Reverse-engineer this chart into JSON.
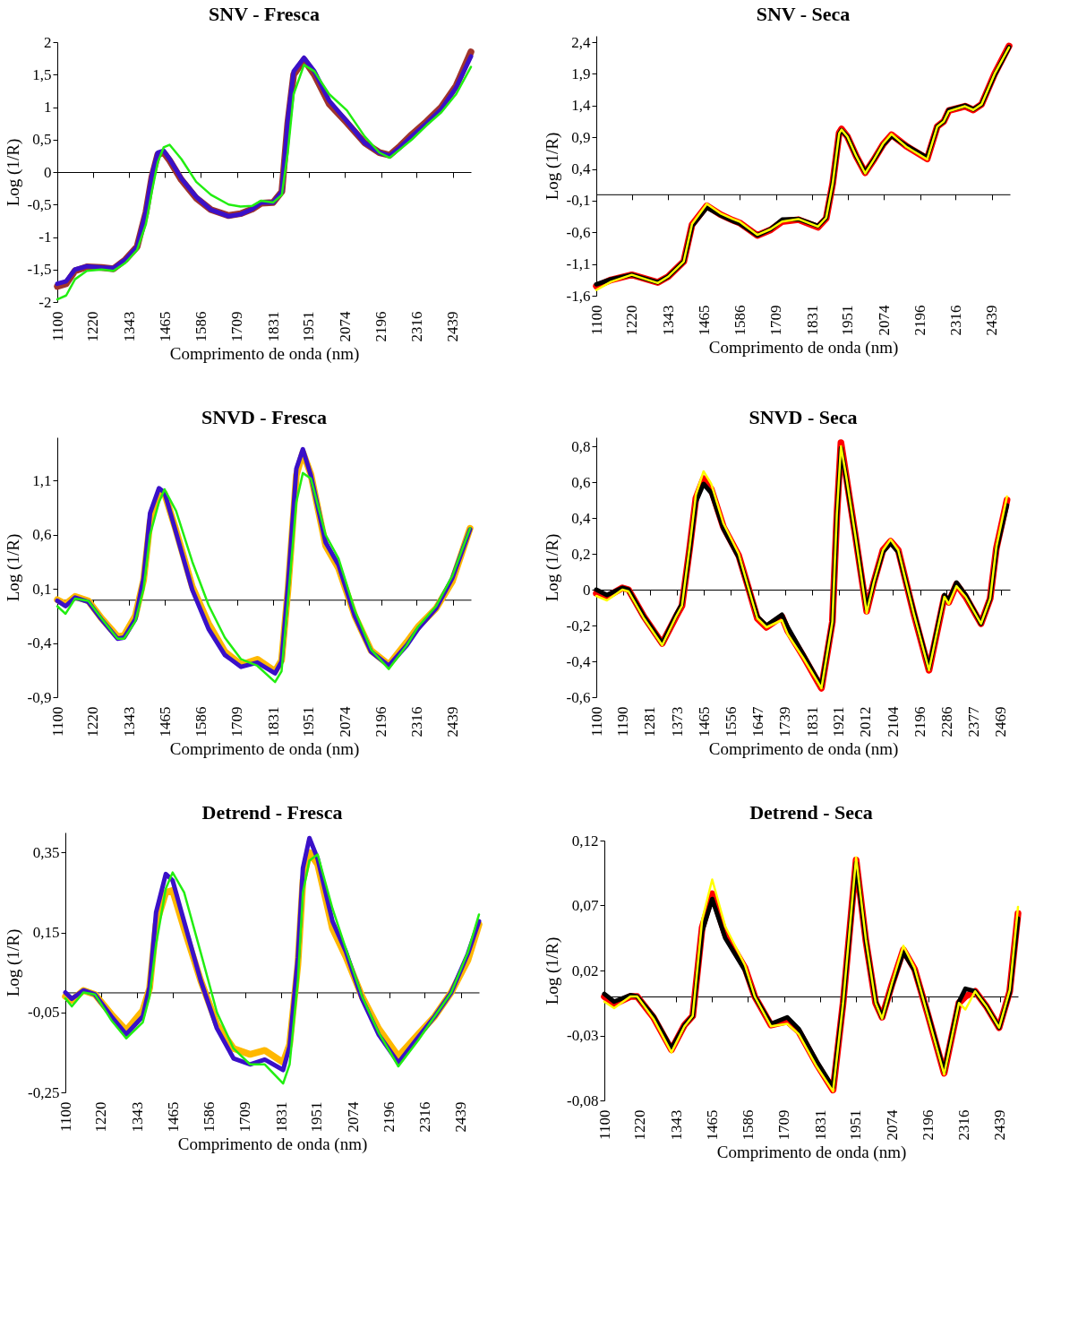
{
  "chart_data": [
    {
      "type": "line",
      "title": "SNV - Fresca",
      "xlabel": "Comprimento de onda (nm)",
      "ylabel": "Log (1/R)",
      "xlim": [
        1100,
        2500
      ],
      "xticks": [
        1100,
        1220,
        1343,
        1465,
        1586,
        1709,
        1831,
        1951,
        2074,
        2196,
        2316,
        2439
      ],
      "ylim": [
        -2,
        2
      ],
      "yticks": [
        -2,
        {
          "value": -1.5,
          "label": "-1,5"
        },
        -1,
        {
          "value": -0.5,
          "label": "-0,5"
        },
        0,
        {
          "value": 0.5,
          "label": "0,5"
        },
        1,
        {
          "value": 1.5,
          "label": "1,5"
        },
        2
      ],
      "x": [
        1100,
        1130,
        1160,
        1200,
        1250,
        1290,
        1330,
        1370,
        1400,
        1420,
        1440,
        1460,
        1480,
        1520,
        1570,
        1620,
        1680,
        1720,
        1760,
        1790,
        1830,
        1860,
        1880,
        1900,
        1935,
        1970,
        2020,
        2080,
        2140,
        2190,
        2225,
        2260,
        2300,
        2350,
        2400,
        2450,
        2500
      ],
      "series": [
        {
          "color": "#a0342c",
          "values": [
            -1.76,
            -1.72,
            -1.52,
            -1.46,
            -1.47,
            -1.49,
            -1.35,
            -1.15,
            -0.62,
            -0.08,
            0.27,
            0.3,
            0.18,
            -0.12,
            -0.4,
            -0.58,
            -0.67,
            -0.64,
            -0.57,
            -0.48,
            -0.47,
            -0.3,
            0.75,
            1.5,
            1.73,
            1.5,
            1.05,
            0.76,
            0.45,
            0.3,
            0.26,
            0.4,
            0.58,
            0.78,
            1.0,
            1.33,
            1.85
          ]
        },
        {
          "color": "#3a10c8",
          "values": [
            -1.72,
            -1.68,
            -1.5,
            -1.45,
            -1.47,
            -1.48,
            -1.35,
            -1.15,
            -0.6,
            -0.05,
            0.3,
            0.33,
            0.2,
            -0.1,
            -0.38,
            -0.58,
            -0.68,
            -0.65,
            -0.57,
            -0.47,
            -0.47,
            -0.3,
            0.8,
            1.55,
            1.76,
            1.55,
            1.1,
            0.78,
            0.45,
            0.3,
            0.25,
            0.38,
            0.55,
            0.75,
            0.97,
            1.3,
            1.78
          ]
        },
        {
          "color": "#22ee11",
          "values": [
            -1.96,
            -1.9,
            -1.65,
            -1.52,
            -1.5,
            -1.52,
            -1.4,
            -1.2,
            -0.8,
            -0.3,
            0.15,
            0.38,
            0.42,
            0.2,
            -0.15,
            -0.35,
            -0.5,
            -0.53,
            -0.52,
            -0.44,
            -0.47,
            -0.35,
            0.3,
            1.2,
            1.65,
            1.55,
            1.2,
            0.95,
            0.55,
            0.3,
            0.22,
            0.35,
            0.5,
            0.72,
            0.92,
            1.2,
            1.62
          ]
        }
      ]
    },
    {
      "type": "line",
      "title": "SNV - Seca",
      "xlabel": "Comprimento de onda (nm)",
      "ylabel": "Log (1/R)",
      "xlim": [
        1100,
        2500
      ],
      "xticks": [
        1100,
        1220,
        1343,
        1465,
        1586,
        1709,
        1831,
        1951,
        2074,
        2196,
        2316,
        2439
      ],
      "ylim": [
        -1.6,
        2.5
      ],
      "yticks": [
        {
          "value": -1.6,
          "label": "-1,6"
        },
        {
          "value": -1.1,
          "label": "-1,1"
        },
        {
          "value": -0.6,
          "label": "-0,6"
        },
        {
          "value": -0.1,
          "label": "-0,1"
        },
        {
          "value": 0.4,
          "label": "0,4"
        },
        {
          "value": 0.9,
          "label": "0,9"
        },
        {
          "value": 1.4,
          "label": "1,4"
        },
        {
          "value": 1.9,
          "label": "1,9"
        },
        {
          "value": 2.4,
          "label": "2,4"
        }
      ],
      "x": [
        1100,
        1150,
        1220,
        1308,
        1343,
        1396,
        1424,
        1474,
        1520,
        1562,
        1585,
        1645,
        1690,
        1729,
        1784,
        1850,
        1878,
        1900,
        1922,
        1930,
        1950,
        1980,
        2010,
        2040,
        2071,
        2099,
        2149,
        2220,
        2254,
        2276,
        2293,
        2348,
        2376,
        2404,
        2448,
        2497
      ],
      "series": [
        {
          "color": "#ff0000",
          "values": [
            -1.45,
            -1.35,
            -1.27,
            -1.39,
            -1.3,
            -1.06,
            -0.48,
            -0.18,
            -0.32,
            -0.41,
            -0.45,
            -0.65,
            -0.56,
            -0.43,
            -0.4,
            -0.52,
            -0.38,
            0.17,
            0.97,
            1.03,
            0.91,
            0.6,
            0.34,
            0.55,
            0.79,
            0.94,
            0.76,
            0.56,
            1.07,
            1.15,
            1.32,
            1.39,
            1.33,
            1.42,
            1.9,
            2.34
          ]
        },
        {
          "color": "#000000",
          "values": [
            -1.42,
            -1.34,
            -1.27,
            -1.39,
            -1.3,
            -1.06,
            -0.5,
            -0.21,
            -0.33,
            -0.42,
            -0.46,
            -0.65,
            -0.55,
            -0.4,
            -0.39,
            -0.5,
            -0.37,
            0.17,
            0.95,
            1.01,
            0.91,
            0.6,
            0.35,
            0.55,
            0.78,
            0.92,
            0.77,
            0.58,
            1.07,
            1.15,
            1.33,
            1.4,
            1.34,
            1.42,
            1.88,
            2.32
          ]
        },
        {
          "color": "#ffff00",
          "values": [
            -1.51,
            -1.38,
            -1.27,
            -1.4,
            -1.3,
            -1.06,
            -0.47,
            -0.15,
            -0.3,
            -0.39,
            -0.43,
            -0.64,
            -0.55,
            -0.43,
            -0.39,
            -0.51,
            -0.37,
            0.17,
            0.96,
            1.02,
            0.91,
            0.6,
            0.33,
            0.55,
            0.8,
            0.95,
            0.75,
            0.55,
            1.07,
            1.15,
            1.31,
            1.39,
            1.33,
            1.42,
            1.9,
            2.32
          ]
        }
      ]
    },
    {
      "type": "line",
      "title": "SNVD - Fresca",
      "xlabel": "Comprimento de onda (nm)",
      "ylabel": "Log (1/R)",
      "xlim": [
        1100,
        2500
      ],
      "xticks": [
        1100,
        1220,
        1343,
        1465,
        1586,
        1709,
        1831,
        1951,
        2074,
        2196,
        2316,
        2439
      ],
      "ylim": [
        -0.9,
        1.5
      ],
      "yticks": [
        {
          "value": -0.9,
          "label": "-0,9"
        },
        {
          "value": -0.4,
          "label": "-0,4"
        },
        {
          "value": 0.1,
          "label": "0,1"
        },
        {
          "value": 0.6,
          "label": "0,6"
        },
        {
          "value": 1.1,
          "label": "1,1"
        }
      ],
      "x": [
        1100,
        1128,
        1160,
        1205,
        1249,
        1304,
        1326,
        1364,
        1392,
        1414,
        1444,
        1463,
        1502,
        1557,
        1612,
        1667,
        1722,
        1777,
        1837,
        1859,
        1881,
        1909,
        1931,
        1958,
        2008,
        2052,
        2107,
        2162,
        2222,
        2283,
        2321,
        2382,
        2437,
        2497
      ],
      "series": [
        {
          "color": "#ffb800",
          "values": [
            0,
            -0.04,
            0.03,
            -0.01,
            -0.17,
            -0.34,
            -0.33,
            -0.15,
            0.18,
            0.72,
            0.97,
            0.98,
            0.64,
            0.12,
            -0.22,
            -0.48,
            -0.6,
            -0.55,
            -0.66,
            -0.56,
            0.1,
            1.15,
            1.36,
            1.16,
            0.5,
            0.29,
            -0.15,
            -0.47,
            -0.6,
            -0.39,
            -0.25,
            -0.08,
            0.17,
            0.66
          ]
        },
        {
          "color": "#3a10c8",
          "values": [
            -0.01,
            -0.06,
            0.02,
            -0.02,
            -0.18,
            -0.36,
            -0.35,
            -0.18,
            0.2,
            0.8,
            1.03,
            0.99,
            0.62,
            0.09,
            -0.27,
            -0.51,
            -0.62,
            -0.58,
            -0.68,
            -0.57,
            0.14,
            1.21,
            1.39,
            1.15,
            0.53,
            0.32,
            -0.15,
            -0.48,
            -0.61,
            -0.42,
            -0.27,
            -0.08,
            0.2,
            0.65
          ]
        },
        {
          "color": "#22ee11",
          "values": [
            -0.06,
            -0.13,
            0.01,
            -0.01,
            -0.17,
            -0.36,
            -0.36,
            -0.2,
            0.1,
            0.6,
            0.9,
            1.02,
            0.82,
            0.35,
            -0.05,
            -0.35,
            -0.55,
            -0.61,
            -0.76,
            -0.66,
            0.0,
            0.9,
            1.17,
            1.12,
            0.6,
            0.38,
            -0.1,
            -0.46,
            -0.64,
            -0.42,
            -0.25,
            -0.06,
            0.22,
            0.66
          ]
        }
      ]
    },
    {
      "type": "line",
      "title": "SNVD - Seca",
      "xlabel": "Comprimento de onda (nm)",
      "ylabel": "Log (1/R)",
      "xlim": [
        1100,
        2500
      ],
      "xticks": [
        1100,
        1190,
        1281,
        1373,
        1465,
        1556,
        1647,
        1739,
        1831,
        1921,
        2012,
        2104,
        2196,
        2286,
        2377,
        2469
      ],
      "ylim": [
        -0.6,
        0.85
      ],
      "yticks": [
        {
          "value": -0.6,
          "label": "-0,6"
        },
        {
          "value": -0.4,
          "label": "-0,4"
        },
        {
          "value": -0.2,
          "label": "-0,2"
        },
        0,
        {
          "value": 0.2,
          "label": "0,2"
        },
        {
          "value": 0.4,
          "label": "0,4"
        },
        {
          "value": 0.6,
          "label": "0,6"
        },
        {
          "value": 0.8,
          "label": "0,8"
        }
      ],
      "x": [
        1100,
        1136,
        1188,
        1209,
        1261,
        1323,
        1370,
        1390,
        1416,
        1437,
        1463,
        1489,
        1530,
        1582,
        1613,
        1645,
        1676,
        1728,
        1748,
        1800,
        1862,
        1899,
        1914,
        1928,
        1945,
        1976,
        2015,
        2039,
        2070,
        2096,
        2122,
        2174,
        2226,
        2278,
        2293,
        2319,
        2350,
        2402,
        2433,
        2454,
        2490
      ],
      "series": [
        {
          "color": "#ff0000",
          "values": [
            -0.02,
            -0.04,
            0.01,
            0,
            -0.15,
            -0.3,
            -0.15,
            -0.09,
            0.23,
            0.51,
            0.62,
            0.56,
            0.35,
            0.19,
            0.02,
            -0.16,
            -0.21,
            -0.15,
            -0.23,
            -0.37,
            -0.55,
            -0.18,
            0.41,
            0.82,
            0.64,
            0.31,
            -0.12,
            0.04,
            0.22,
            0.27,
            0.22,
            -0.13,
            -0.45,
            -0.04,
            -0.07,
            0.03,
            -0.04,
            -0.19,
            -0.05,
            0.23,
            0.5
          ]
        },
        {
          "color": "#000000",
          "values": [
            0,
            -0.03,
            0.01,
            0,
            -0.15,
            -0.3,
            -0.14,
            -0.08,
            0.22,
            0.49,
            0.59,
            0.54,
            0.34,
            0.18,
            0.02,
            -0.15,
            -0.2,
            -0.14,
            -0.21,
            -0.36,
            -0.54,
            -0.18,
            0.4,
            0.79,
            0.63,
            0.31,
            -0.11,
            0.04,
            0.21,
            0.26,
            0.21,
            -0.12,
            -0.44,
            -0.03,
            -0.06,
            0.04,
            -0.03,
            -0.19,
            -0.05,
            0.22,
            0.47
          ]
        },
        {
          "color": "#ffff00",
          "values": [
            -0.035,
            -0.06,
            0,
            -0.01,
            -0.16,
            -0.31,
            -0.15,
            -0.09,
            0.24,
            0.53,
            0.66,
            0.59,
            0.37,
            0.2,
            0.02,
            -0.16,
            -0.21,
            -0.17,
            -0.25,
            -0.38,
            -0.55,
            -0.18,
            0.42,
            0.8,
            0.64,
            0.31,
            -0.13,
            0.04,
            0.22,
            0.28,
            0.22,
            -0.13,
            -0.45,
            -0.04,
            -0.08,
            0.02,
            -0.04,
            -0.19,
            -0.05,
            0.24,
            0.52
          ]
        }
      ]
    },
    {
      "type": "line",
      "title": "Detrend - Fresca",
      "xlabel": "Comprimento de onda (nm)",
      "ylabel": "Log (1/R)",
      "xlim": [
        1100,
        2500
      ],
      "xticks": [
        1100,
        1220,
        1343,
        1465,
        1586,
        1709,
        1831,
        1951,
        2074,
        2196,
        2316,
        2439
      ],
      "ylim": [
        -0.25,
        0.4
      ],
      "yticks": [
        {
          "value": -0.25,
          "label": "-0,25"
        },
        {
          "value": -0.05,
          "label": "-0,05"
        },
        {
          "value": 0.15,
          "label": "0,15"
        },
        {
          "value": 0.35,
          "label": "0,35"
        }
      ],
      "x": [
        1100,
        1122,
        1161,
        1200,
        1256,
        1306,
        1362,
        1385,
        1407,
        1440,
        1463,
        1502,
        1558,
        1613,
        1669,
        1725,
        1775,
        1837,
        1859,
        1887,
        1904,
        1926,
        1954,
        2004,
        2049,
        2104,
        2160,
        2227,
        2294,
        2350,
        2406,
        2462,
        2500
      ],
      "series": [
        {
          "color": "#ffb800",
          "values": [
            -0.01,
            -0.02,
            0.005,
            -0.005,
            -0.055,
            -0.095,
            -0.045,
            0.01,
            0.17,
            0.25,
            0.255,
            0.16,
            0.03,
            -0.08,
            -0.14,
            -0.155,
            -0.145,
            -0.175,
            -0.13,
            0.07,
            0.28,
            0.35,
            0.32,
            0.16,
            0.09,
            -0.01,
            -0.09,
            -0.16,
            -0.105,
            -0.06,
            0,
            0.08,
            0.17
          ]
        },
        {
          "color": "#3a10c8",
          "values": [
            0,
            -0.016,
            0.005,
            -0.005,
            -0.06,
            -0.105,
            -0.06,
            0.014,
            0.2,
            0.296,
            0.28,
            0.177,
            0.03,
            -0.09,
            -0.165,
            -0.18,
            -0.168,
            -0.194,
            -0.135,
            0.088,
            0.311,
            0.386,
            0.334,
            0.178,
            0.103,
            -0.016,
            -0.105,
            -0.176,
            -0.112,
            -0.06,
            0,
            0.096,
            0.178
          ]
        },
        {
          "color": "#22ee11",
          "values": [
            -0.015,
            -0.035,
            0,
            -0.005,
            -0.07,
            -0.115,
            -0.075,
            -0.01,
            0.12,
            0.26,
            0.3,
            0.25,
            0.1,
            -0.05,
            -0.14,
            -0.18,
            -0.18,
            -0.228,
            -0.18,
            0.03,
            0.25,
            0.33,
            0.345,
            0.21,
            0.11,
            -0.01,
            -0.1,
            -0.185,
            -0.12,
            -0.06,
            0,
            0.1,
            0.195
          ]
        }
      ]
    },
    {
      "type": "line",
      "title": "Detrend - Seca",
      "xlabel": "Comprimento de onda (nm)",
      "ylabel": "Log (1/R)",
      "xlim": [
        1100,
        2500
      ],
      "xticks": [
        1100,
        1220,
        1343,
        1465,
        1586,
        1709,
        1831,
        1951,
        2074,
        2196,
        2316,
        2439
      ],
      "ylim": [
        -0.08,
        0.12
      ],
      "yticks": [
        {
          "value": -0.08,
          "label": "-0,08"
        },
        {
          "value": -0.03,
          "label": "-0,03"
        },
        {
          "value": 0.02,
          "label": "0,02"
        },
        {
          "value": 0.07,
          "label": "0,07"
        },
        {
          "value": 0.12,
          "label": "0,12"
        }
      ],
      "x": [
        1100,
        1133,
        1188,
        1211,
        1266,
        1327,
        1371,
        1399,
        1431,
        1465,
        1509,
        1576,
        1609,
        1664,
        1719,
        1758,
        1819,
        1874,
        1908,
        1952,
        1985,
        2018,
        2040,
        2073,
        2112,
        2150,
        2195,
        2250,
        2300,
        2322,
        2355,
        2394,
        2436,
        2472,
        2500
      ],
      "series": [
        {
          "color": "#ff0000",
          "values": [
            0,
            -0.006,
            0,
            0,
            -0.016,
            -0.041,
            -0.022,
            -0.015,
            0.053,
            0.079,
            0.048,
            0.022,
            0,
            -0.022,
            -0.019,
            -0.027,
            -0.052,
            -0.072,
            -0.005,
            0.105,
            0.043,
            -0.005,
            -0.016,
            0.009,
            0.036,
            0.021,
            -0.014,
            -0.059,
            -0.005,
            0,
            0.004,
            -0.008,
            -0.024,
            0.004,
            0.064
          ]
        },
        {
          "color": "#000000",
          "values": [
            0.002,
            -0.004,
            0.001,
            0,
            -0.015,
            -0.04,
            -0.022,
            -0.015,
            0.05,
            0.075,
            0.045,
            0.02,
            0,
            -0.021,
            -0.016,
            -0.025,
            -0.05,
            -0.07,
            -0.005,
            0.103,
            0.043,
            -0.004,
            -0.016,
            0.008,
            0.034,
            0.02,
            -0.013,
            -0.058,
            -0.004,
            0.006,
            0.004,
            -0.008,
            -0.024,
            0.003,
            0.06
          ]
        },
        {
          "color": "#ffff00",
          "values": [
            -0.004,
            -0.009,
            0,
            0,
            -0.017,
            -0.043,
            -0.023,
            -0.015,
            0.059,
            0.09,
            0.054,
            0.024,
            0,
            -0.023,
            -0.021,
            -0.029,
            -0.054,
            -0.073,
            -0.005,
            0.107,
            0.044,
            -0.005,
            -0.017,
            0.01,
            0.039,
            0.022,
            -0.015,
            -0.06,
            -0.005,
            -0.01,
            0.004,
            -0.008,
            -0.024,
            0.005,
            0.069
          ]
        }
      ]
    }
  ]
}
